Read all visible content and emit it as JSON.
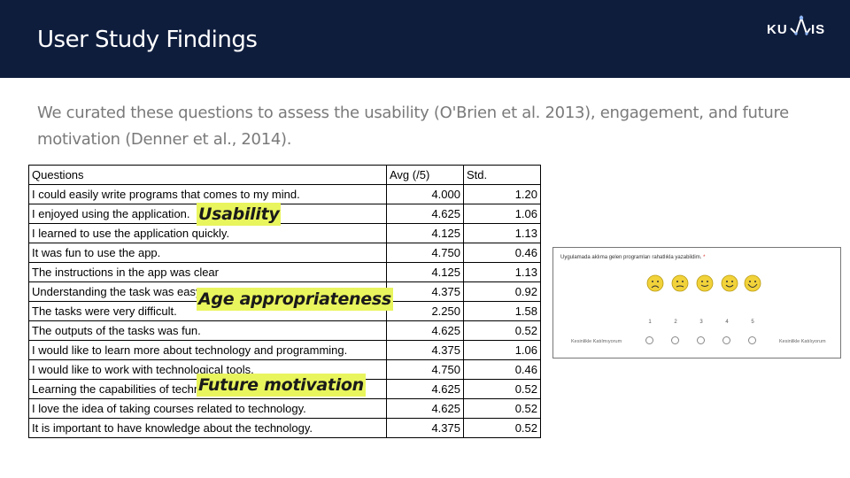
{
  "header": {
    "title": "User Study Findings",
    "logo_text": "KU IS"
  },
  "subtitle": "We curated these questions to assess the usability (O'Brien et al. 2013), engagement, and future motivation (Denner et al., 2014).",
  "table": {
    "headers": [
      "Questions",
      "Avg (/5)",
      "Std."
    ],
    "rows": [
      {
        "q": "I could easily write programs that comes to my mind.",
        "avg": "4.000",
        "std": "1.20"
      },
      {
        "q": "I enjoyed using the application.",
        "avg": "4.625",
        "std": "1.06"
      },
      {
        "q": "I learned to use the application quickly.",
        "avg": "4.125",
        "std": "1.13"
      },
      {
        "q": "It was fun to use the app.",
        "avg": "4.750",
        "std": "0.46"
      },
      {
        "q": "The instructions in the app was clear",
        "avg": "4.125",
        "std": "1.13"
      },
      {
        "q": "Understanding the task was easy.",
        "avg": "4.375",
        "std": "0.92"
      },
      {
        "q": "The tasks were very difficult.",
        "avg": "2.250",
        "std": "1.58"
      },
      {
        "q": "The outputs of the tasks was fun.",
        "avg": "4.625",
        "std": "0.52"
      },
      {
        "q": "I would like to learn more about technology and programming.",
        "avg": "4.375",
        "std": "1.06"
      },
      {
        "q": "I would like to work with technological tools.",
        "avg": "4.750",
        "std": "0.46"
      },
      {
        "q": "Learning the capabilities of technology is fun.",
        "avg": "4.625",
        "std": "0.52"
      },
      {
        "q": "I love the idea of taking courses related to technology.",
        "avg": "4.625",
        "std": "0.52"
      },
      {
        "q": "It is important to have knowledge about the technology.",
        "avg": "4.375",
        "std": "0.52"
      }
    ]
  },
  "tags": {
    "usability": "Usability",
    "age": "Age appropriateness",
    "future": "Future motivation"
  },
  "survey": {
    "question": "Uygulamada aklıma gelen programları rahatlıkla yazabildim.",
    "required_mark": "*",
    "scale": [
      "1",
      "2",
      "3",
      "4",
      "5"
    ],
    "left_anchor": "Kesinlikle Katılmıyorum",
    "right_anchor": "Kesinlikle Katılıyorum"
  },
  "colors": {
    "header_bg": "#0f1d3d",
    "highlight": "#e9f55d",
    "face": "#f1d23a"
  }
}
